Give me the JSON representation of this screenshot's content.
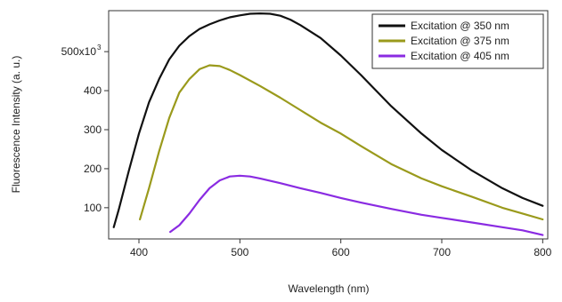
{
  "chart_data": {
    "type": "line",
    "title": "",
    "xlabel": "Wavelength (nm)",
    "ylabel": "Fluorescence Intensity (a. u.)",
    "xlim": [
      370,
      805
    ],
    "ylim": [
      20000,
      605000
    ],
    "x_ticks": [
      {
        "value": 400,
        "label": "400"
      },
      {
        "value": 500,
        "label": "500"
      },
      {
        "value": 600,
        "label": "600"
      },
      {
        "value": 700,
        "label": "700"
      },
      {
        "value": 800,
        "label": "800"
      }
    ],
    "y_ticks": [
      {
        "value": 100000,
        "label": "100"
      },
      {
        "value": 200000,
        "label": "200"
      },
      {
        "value": 300000,
        "label": "300"
      },
      {
        "value": 400000,
        "label": "400"
      },
      {
        "value": 500000,
        "label": "500x10"
      }
    ],
    "y_tick_exponent": "3",
    "grid": false,
    "legend_position": "top-right",
    "series": [
      {
        "name": "Excitation @ 350 nm",
        "color": "#111111",
        "x": [
          375,
          380,
          390,
          400,
          410,
          420,
          430,
          440,
          450,
          460,
          470,
          480,
          490,
          500,
          510,
          520,
          530,
          540,
          550,
          560,
          580,
          600,
          620,
          650,
          680,
          700,
          730,
          760,
          780,
          800
        ],
        "y": [
          50000,
          95000,
          195000,
          290000,
          370000,
          430000,
          480000,
          515000,
          540000,
          558000,
          570000,
          580000,
          588000,
          593000,
          597000,
          598000,
          597000,
          592000,
          582000,
          568000,
          535000,
          490000,
          440000,
          360000,
          290000,
          248000,
          195000,
          150000,
          125000,
          105000
        ]
      },
      {
        "name": "Excitation @ 375 nm",
        "color": "#9a9a1c",
        "x": [
          401,
          410,
          420,
          430,
          440,
          450,
          460,
          470,
          480,
          490,
          500,
          520,
          540,
          560,
          580,
          600,
          620,
          650,
          680,
          700,
          730,
          760,
          780,
          800
        ],
        "y": [
          70000,
          150000,
          245000,
          330000,
          395000,
          430000,
          455000,
          465000,
          463000,
          453000,
          440000,
          412000,
          382000,
          350000,
          318000,
          290000,
          258000,
          212000,
          175000,
          155000,
          128000,
          100000,
          85000,
          70000
        ]
      },
      {
        "name": "Excitation @ 405 nm",
        "color": "#8a2be2",
        "x": [
          431,
          440,
          450,
          460,
          470,
          480,
          490,
          500,
          510,
          520,
          540,
          560,
          580,
          600,
          620,
          650,
          680,
          700,
          730,
          760,
          780,
          800
        ],
        "y": [
          38000,
          55000,
          85000,
          120000,
          150000,
          170000,
          180000,
          182000,
          180000,
          175000,
          163000,
          150000,
          138000,
          125000,
          113000,
          97000,
          82000,
          74000,
          62000,
          50000,
          42000,
          30000
        ]
      }
    ]
  }
}
